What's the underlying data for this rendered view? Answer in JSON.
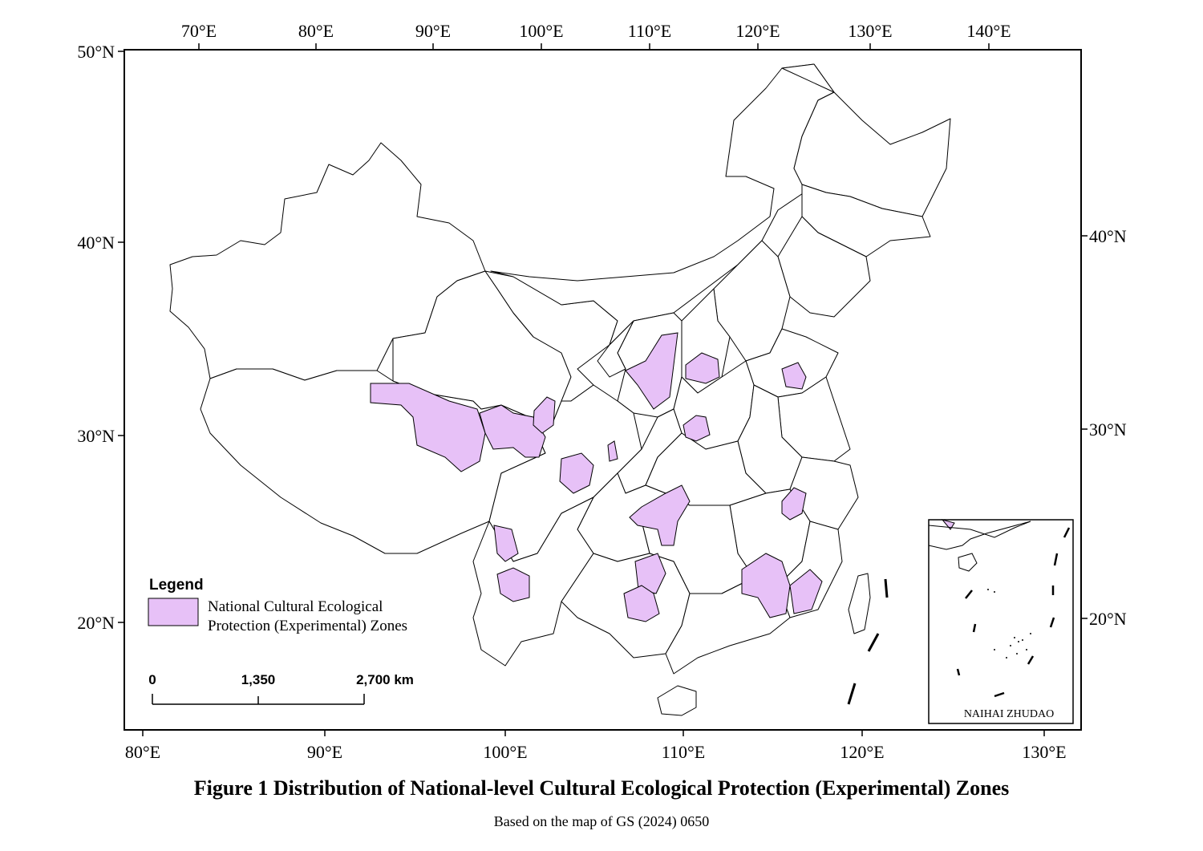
{
  "figure": {
    "caption": "Figure 1   Distribution of National-level  Cultural Ecological Protection (Experimental) Zones",
    "source_note": "Based on  the map of GS (2024) 0650"
  },
  "axes": {
    "top_longitudes": [
      "70°E",
      "80°E",
      "90°E",
      "100°E",
      "110°E",
      "120°E",
      "130°E",
      "140°E"
    ],
    "bottom_longitudes": [
      "80°E",
      "90°E",
      "100°E",
      "110°E",
      "120°E",
      "130°E"
    ],
    "left_latitudes": [
      "50°N",
      "40°N",
      "30°N",
      "20°N"
    ],
    "right_latitudes": [
      "40°N",
      "30°N",
      "20°N"
    ]
  },
  "legend": {
    "title": "Legend",
    "item_line1": "National Cultural Ecological",
    "item_line2": "Protection (Experimental) Zones",
    "zone_color": "#e7c1f7"
  },
  "scale_bar": {
    "labels": [
      "0",
      "1,350",
      "2,700 km"
    ]
  },
  "inset": {
    "label": "NAIHAI ZHUDAO"
  },
  "colors": {
    "zone_fill": "#e7c1f7",
    "outline": "#000000",
    "background": "#ffffff"
  }
}
